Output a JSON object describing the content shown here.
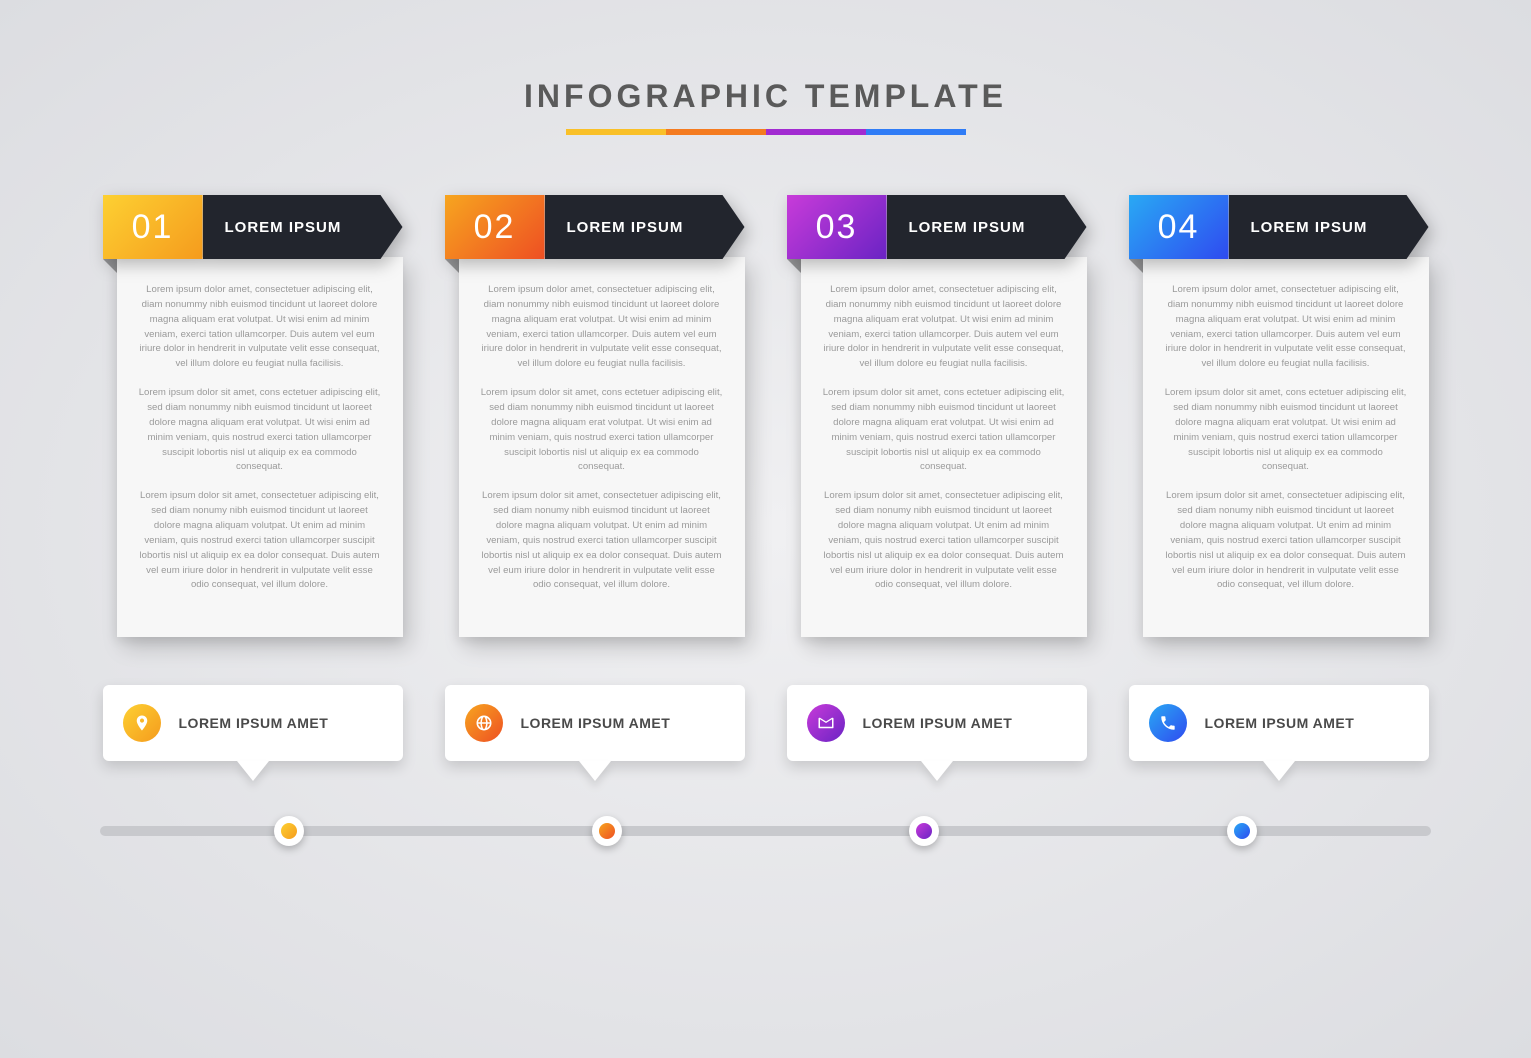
{
  "title": "INFOGRAPHIC TEMPLATE",
  "title_color": "#5a5a5a",
  "title_fontsize": 32,
  "title_letter_spacing": 4,
  "background": "radial-gradient(ellipse at center, #f0f0f2 0%, #dcdde1 100%)",
  "accent_bar_colors": [
    "#f9c028",
    "#f47b20",
    "#a22bd1",
    "#2f7cf6"
  ],
  "ribbon_dark_color": "#22252d",
  "card_bg": "#f7f7f7",
  "body_text_color": "#9a9a9a",
  "callout_bg": "#ffffff",
  "timeline_track_color": "#c8c9cd",
  "lorem_p1": "Lorem ipsum dolor amet, consectetuer adipiscing elit, diam nonummy nibh euismod tincidunt ut laoreet dolore magna aliquam erat volutpat. Ut wisi enim ad minim veniam, exerci tation ullamcorper. Duis autem vel eum iriure dolor in hendrerit in vulputate velit esse consequat, vel illum dolore eu feugiat nulla facilisis.",
  "lorem_p2": "Lorem ipsum dolor sit amet, cons ectetuer adipiscing elit, sed diam nonummy nibh euismod tincidunt ut laoreet dolore magna aliquam erat volutpat. Ut wisi enim ad minim veniam, quis nostrud exerci tation ullamcorper suscipit lobortis nisl ut aliquip ex ea commodo consequat.",
  "lorem_p3": "Lorem ipsum dolor sit amet, consectetuer adipiscing elit, sed diam nonumy nibh euismod tincidunt ut laoreet dolore magna aliquam volutpat. Ut enim ad minim veniam, quis nostrud exerci tation ullamcorper suscipit lobortis nisl ut aliquip ex ea dolor consequat. Duis autem vel eum iriure dolor in hendrerit in vulputate velit esse odio consequat, vel illum dolore.",
  "steps": [
    {
      "num": "01",
      "label": "LOREM IPSUM",
      "gradient": "linear-gradient(135deg,#fdd032 0%,#f59b1d 100%)",
      "callout": "LOREM IPSUM AMET",
      "icon": "pin"
    },
    {
      "num": "02",
      "label": "LOREM IPSUM",
      "gradient": "linear-gradient(135deg,#f7a51f 0%,#ee4f23 100%)",
      "callout": "LOREM IPSUM AMET",
      "icon": "globe"
    },
    {
      "num": "03",
      "label": "LOREM IPSUM",
      "gradient": "linear-gradient(135deg,#c83bd9 0%,#6a23c4 100%)",
      "callout": "LOREM IPSUM AMET",
      "icon": "mail"
    },
    {
      "num": "04",
      "label": "LOREM IPSUM",
      "gradient": "linear-gradient(135deg,#29a9f4 0%,#2f4af0 100%)",
      "callout": "LOREM IPSUM AMET",
      "icon": "phone"
    }
  ]
}
